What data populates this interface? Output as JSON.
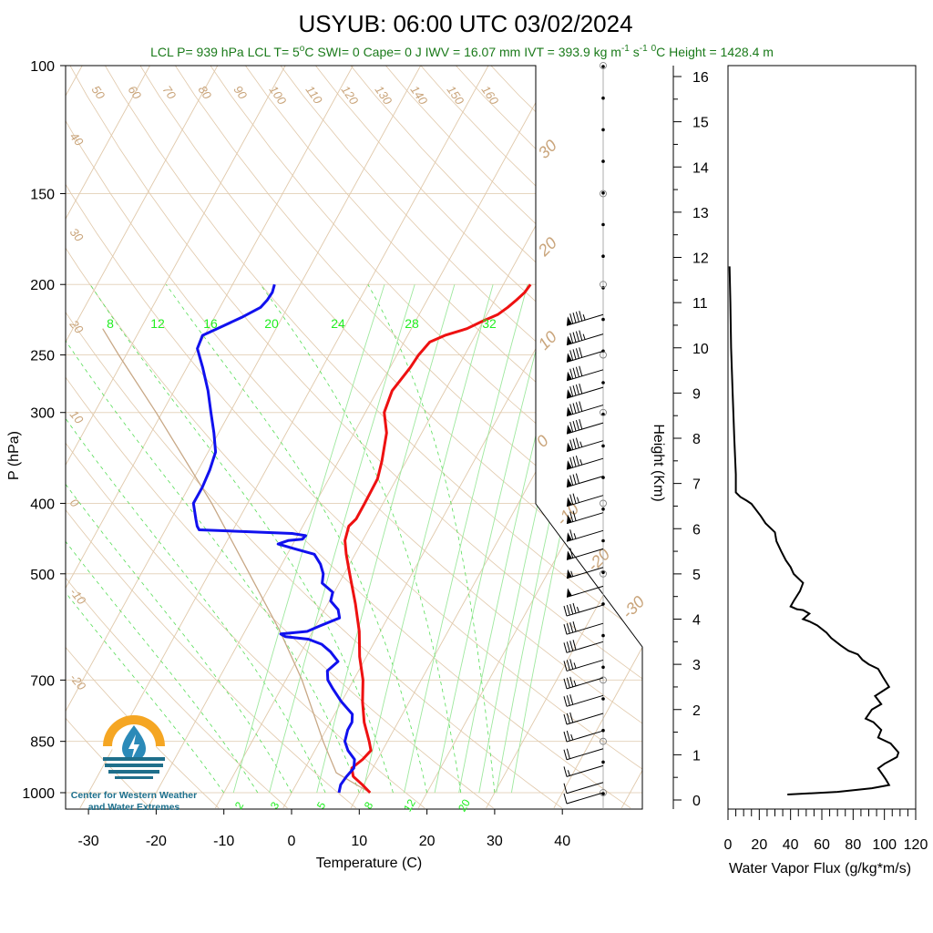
{
  "title": "USYUB: 06:00 UTC 03/02/2024",
  "info": {
    "parts": [
      "LCL P= 939 hPa",
      "LCL T= 5",
      "C",
      "SWI= 0",
      "Cape= 0 J",
      "IWV = 16.07 mm",
      "IVT = 393.9 kg m",
      "-1",
      " s",
      "-1",
      "0",
      "C Height = 1428.4 m"
    ],
    "deg": "o"
  },
  "logo": {
    "line1": "Center for Western Weather",
    "line2": "and Water Extremes"
  },
  "colors": {
    "temperature": "#ee1111",
    "dewpoint": "#1111ee",
    "isotherm": "#e0c8aa",
    "mixing": "#55dd55",
    "flux": "#000000",
    "parcel": "#c8a886"
  },
  "chart_data": [
    {
      "type": "line",
      "name": "skew-t",
      "xlabel": "Temperature (C)",
      "ylabel": "P (hPa)",
      "x_ticks": [
        "-30",
        "-20",
        "-10",
        "0",
        "10",
        "20",
        "30",
        "40"
      ],
      "y_ticks": [
        "100",
        "150",
        "200",
        "250",
        "300",
        "400",
        "500",
        "700",
        "850",
        "1000"
      ],
      "dry_adiabat_labels": [
        "50",
        "60",
        "70",
        "80",
        "90",
        "100",
        "110",
        "120",
        "130",
        "140",
        "150",
        "160"
      ],
      "isotherm_labels": [
        "40",
        "30",
        "20",
        "10",
        "0",
        "-10",
        "-20"
      ],
      "isotherm_labels_right": [
        "30",
        "20",
        "10",
        "0",
        "-10",
        "-20",
        "-30"
      ],
      "mixing_top_labels": [
        "8",
        "12",
        "16",
        "20",
        "24",
        "28",
        "32"
      ],
      "mixing_bottom_labels": [
        "2",
        "3",
        "5",
        "8",
        "12",
        "20"
      ],
      "temperature": [
        [
          1000,
          11.6
        ],
        [
          975,
          9.8
        ],
        [
          950,
          7.8
        ],
        [
          925,
          6.9
        ],
        [
          900,
          7.8
        ],
        [
          875,
          8.3
        ],
        [
          850,
          7.3
        ],
        [
          800,
          5.0
        ],
        [
          750,
          3.1
        ],
        [
          700,
          1.4
        ],
        [
          650,
          -1.0
        ],
        [
          600,
          -3.1
        ],
        [
          550,
          -5.9
        ],
        [
          500,
          -9.2
        ],
        [
          470,
          -11.3
        ],
        [
          450,
          -12.6
        ],
        [
          430,
          -13.2
        ],
        [
          420,
          -12.7
        ],
        [
          400,
          -12.7
        ],
        [
          370,
          -12.8
        ],
        [
          350,
          -13.6
        ],
        [
          320,
          -15.2
        ],
        [
          300,
          -17.2
        ],
        [
          280,
          -17.8
        ],
        [
          270,
          -17.4
        ],
        [
          260,
          -17.0
        ],
        [
          250,
          -16.8
        ],
        [
          240,
          -16.2
        ],
        [
          235,
          -14.5
        ],
        [
          230,
          -11.8
        ],
        [
          225,
          -10.2
        ],
        [
          220,
          -8.4
        ],
        [
          215,
          -7.5
        ],
        [
          210,
          -6.8
        ],
        [
          205,
          -6.2
        ],
        [
          200,
          -6.0
        ]
      ],
      "dewpoint": [
        [
          1000,
          7.0
        ],
        [
          975,
          6.6
        ],
        [
          950,
          6.8
        ],
        [
          925,
          7.2
        ],
        [
          900,
          6.6
        ],
        [
          875,
          4.9
        ],
        [
          850,
          3.7
        ],
        [
          820,
          3.2
        ],
        [
          800,
          3.2
        ],
        [
          780,
          2.6
        ],
        [
          750,
          0.0
        ],
        [
          720,
          -2.3
        ],
        [
          700,
          -3.8
        ],
        [
          680,
          -4.6
        ],
        [
          660,
          -3.8
        ],
        [
          640,
          -5.7
        ],
        [
          625,
          -7.6
        ],
        [
          615,
          -10.0
        ],
        [
          610,
          -13.6
        ],
        [
          605,
          -14.5
        ],
        [
          600,
          -10.8
        ],
        [
          590,
          -9.4
        ],
        [
          575,
          -7.1
        ],
        [
          560,
          -8.0
        ],
        [
          545,
          -9.8
        ],
        [
          530,
          -10.2
        ],
        [
          515,
          -12.5
        ],
        [
          500,
          -13.1
        ],
        [
          485,
          -14.3
        ],
        [
          470,
          -16.0
        ],
        [
          462,
          -19.3
        ],
        [
          455,
          -22.2
        ],
        [
          450,
          -21.0
        ],
        [
          448,
          -19.0
        ],
        [
          443,
          -18.8
        ],
        [
          440,
          -21.0
        ],
        [
          435,
          -35.0
        ],
        [
          430,
          -35.6
        ],
        [
          420,
          -36.4
        ],
        [
          400,
          -38.0
        ],
        [
          380,
          -38.0
        ],
        [
          360,
          -38.3
        ],
        [
          340,
          -38.9
        ],
        [
          320,
          -40.7
        ],
        [
          300,
          -42.8
        ],
        [
          280,
          -45.0
        ],
        [
          260,
          -47.7
        ],
        [
          245,
          -50.0
        ],
        [
          235,
          -50.3
        ],
        [
          228,
          -48.0
        ],
        [
          222,
          -46.0
        ],
        [
          215,
          -44.0
        ],
        [
          210,
          -43.6
        ],
        [
          205,
          -43.5
        ],
        [
          200,
          -43.8
        ]
      ],
      "parcel": [
        [
          1000,
          11.6
        ],
        [
          939,
          5.0
        ],
        [
          850,
          0.5
        ],
        [
          700,
          -7.6
        ],
        [
          600,
          -14.8
        ],
        [
          500,
          -24.0
        ],
        [
          400,
          -35.3
        ],
        [
          300,
          -50.9
        ],
        [
          250,
          -61.1
        ],
        [
          230,
          -65.6
        ]
      ],
      "winds": [
        [
          220,
          95,
          210
        ],
        [
          234,
          95,
          210
        ],
        [
          247,
          92,
          210
        ],
        [
          262,
          92,
          210
        ],
        [
          277,
          92,
          210
        ],
        [
          293,
          90,
          210
        ],
        [
          310,
          90,
          210
        ],
        [
          328,
          88,
          210
        ],
        [
          347,
          85,
          210
        ],
        [
          367,
          80,
          210
        ],
        [
          390,
          75,
          215
        ],
        [
          412,
          70,
          220
        ],
        [
          436,
          65,
          220
        ],
        [
          462,
          60,
          220
        ],
        [
          490,
          55,
          220
        ],
        [
          520,
          50,
          220
        ],
        [
          552,
          45,
          220
        ],
        [
          585,
          40,
          225
        ],
        [
          620,
          40,
          225
        ],
        [
          657,
          35,
          225
        ],
        [
          695,
          35,
          225
        ],
        [
          735,
          30,
          230
        ],
        [
          778,
          30,
          230
        ],
        [
          822,
          25,
          235
        ],
        [
          870,
          20,
          240
        ],
        [
          918,
          15,
          240
        ],
        [
          968,
          10,
          240
        ],
        [
          1000,
          10,
          250
        ]
      ]
    },
    {
      "type": "line",
      "name": "water-vapor-flux",
      "xlabel": "Water Vapor Flux (g/kg*m/s)",
      "ylabel": "Height (Km)",
      "x_ticks": [
        "0",
        "20",
        "40",
        "60",
        "80",
        "100",
        "120"
      ],
      "y_ticks": [
        "0",
        "1",
        "2",
        "3",
        "4",
        "5",
        "6",
        "7",
        "8",
        "9",
        "10",
        "11",
        "12",
        "13",
        "14",
        "15",
        "16"
      ],
      "xlim": [
        0,
        120
      ],
      "ylim": [
        0,
        16
      ],
      "profile": [
        [
          38,
          0.12
        ],
        [
          70,
          0.18
        ],
        [
          92,
          0.26
        ],
        [
          103,
          0.33
        ],
        [
          101,
          0.45
        ],
        [
          99,
          0.55
        ],
        [
          96,
          0.7
        ],
        [
          100,
          0.8
        ],
        [
          108,
          0.95
        ],
        [
          109,
          1.05
        ],
        [
          104,
          1.25
        ],
        [
          96,
          1.38
        ],
        [
          98,
          1.55
        ],
        [
          93,
          1.72
        ],
        [
          88,
          1.8
        ],
        [
          92,
          2.0
        ],
        [
          98,
          2.12
        ],
        [
          94,
          2.3
        ],
        [
          103,
          2.5
        ],
        [
          99,
          2.72
        ],
        [
          96,
          2.9
        ],
        [
          90,
          3.0
        ],
        [
          86,
          3.1
        ],
        [
          83,
          3.22
        ],
        [
          77,
          3.3
        ],
        [
          72,
          3.42
        ],
        [
          66,
          3.58
        ],
        [
          63,
          3.7
        ],
        [
          57,
          3.86
        ],
        [
          52,
          3.95
        ],
        [
          48,
          4.0
        ],
        [
          52,
          4.12
        ],
        [
          48,
          4.2
        ],
        [
          44,
          4.22
        ],
        [
          40,
          4.28
        ],
        [
          42,
          4.4
        ],
        [
          46,
          4.62
        ],
        [
          48,
          4.8
        ],
        [
          42,
          5.0
        ],
        [
          40,
          5.15
        ],
        [
          37,
          5.3
        ],
        [
          34,
          5.5
        ],
        [
          31,
          5.72
        ],
        [
          30,
          5.92
        ],
        [
          24,
          6.12
        ],
        [
          21,
          6.28
        ],
        [
          15,
          6.55
        ],
        [
          12,
          6.62
        ],
        [
          8,
          6.7
        ],
        [
          5,
          6.8
        ],
        [
          5,
          7.2
        ],
        [
          4,
          8.0
        ],
        [
          3,
          9.0
        ],
        [
          2,
          10.0
        ],
        [
          1.5,
          11.0
        ],
        [
          1,
          11.8
        ]
      ]
    }
  ]
}
